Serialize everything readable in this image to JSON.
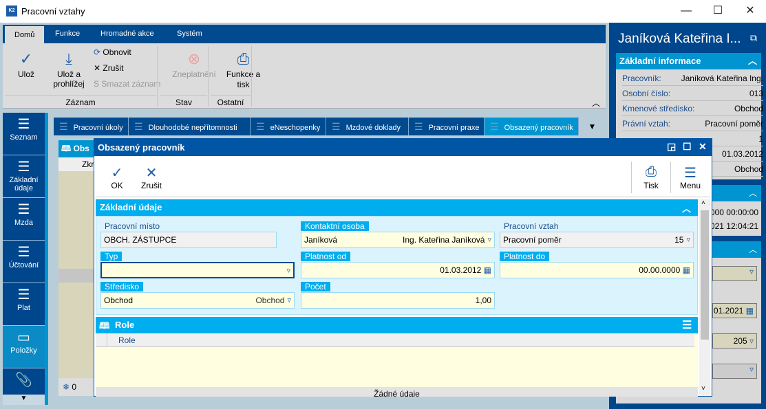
{
  "window": {
    "title": "Pracovní vztahy",
    "controls": [
      "—",
      "☐",
      "✕"
    ]
  },
  "ribbon": {
    "tabs": [
      "Domů",
      "Funkce",
      "Hromadné akce",
      "Systém"
    ],
    "save": "Ulož",
    "save_browse": "Ulož a prohlížej",
    "refresh": "Obnovit",
    "cancel": "Zrušit",
    "delete": "Smazat záznam",
    "invalidate": "Zneplatnění",
    "functions_print": "Funkce a tisk",
    "groups": [
      "Záznam",
      "Stav",
      "Ostatní"
    ]
  },
  "nav": [
    "Seznam",
    "Základní údaje",
    "Mzda",
    "Účtování",
    "Plat",
    "Položky"
  ],
  "doc_tabs": [
    "Pracovní úkoly",
    "Dlouhodobé nepřítomnosti",
    "eNeschopenky",
    "Mzdové doklady",
    "Pracovní praxe",
    "Obsazený pracovník"
  ],
  "behind": {
    "header": "Obs",
    "col": "Zkr",
    "count": "0"
  },
  "dialog": {
    "title": "Obsazený pracovník",
    "ok": "OK",
    "cancel": "Zrušit",
    "print": "Tisk",
    "menu": "Menu",
    "section": "Základní údaje",
    "fields": {
      "workplace_label": "Pracovní místo",
      "workplace": "OBCH. ZÁSTUPCE",
      "contact_label": "Kontaktní osoba",
      "contact": "Janíková",
      "contact_name": "Ing. Kateřina Janíková",
      "relation_label": "Pracovní vztah",
      "relation": "Pracovní poměr",
      "relation_code": "15",
      "type_label": "Typ",
      "type": "",
      "valid_from_label": "Platnost od",
      "valid_from": "01.03.2012",
      "valid_to_label": "Platnost do",
      "valid_to": "00.00.0000",
      "center_label": "Středisko",
      "center": "Obchod",
      "center_name": "Obchod",
      "count_label": "Počet",
      "count": "1,00"
    },
    "role_section": "Role",
    "role_col": "Role",
    "empty": "Žádné údaje"
  },
  "right": {
    "title": "Janíková Kateřina I...",
    "section": "Základní informace",
    "rows": [
      {
        "k": "Pracovník:",
        "v": "Janíková Kateřina Ing."
      },
      {
        "k": "Osobní číslo:",
        "v": "013"
      },
      {
        "k": "Kmenové středisko:",
        "v": "Obchod"
      },
      {
        "k": "Právní vztah:",
        "v": "Pracovní poměr"
      },
      {
        "k": "",
        "v": "1"
      },
      {
        "k": "",
        "v": "01.03.2012"
      },
      {
        "k": "",
        "v": "Obchod"
      }
    ],
    "ts1": "000 00:00:00",
    "ts2": "021 12:04:21",
    "date": "01.2021",
    "num": "205"
  }
}
